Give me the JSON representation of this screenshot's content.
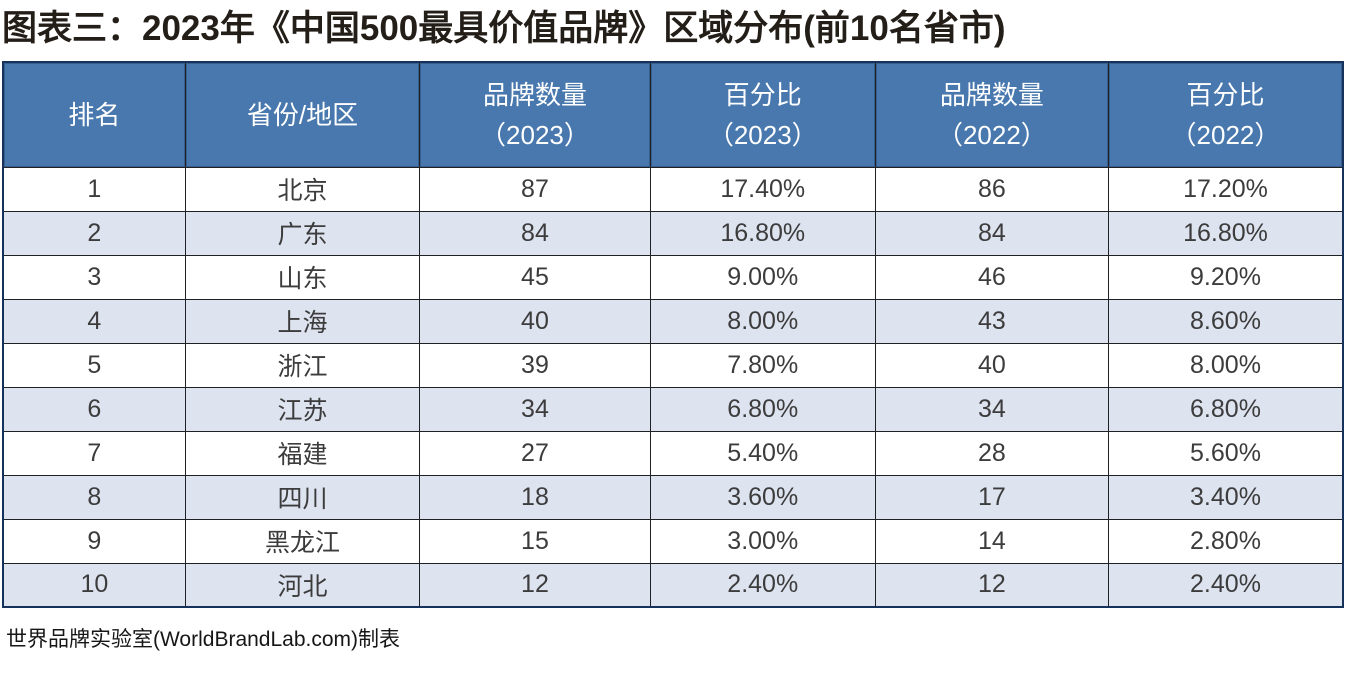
{
  "title": "图表三：2023年《中国500最具价值品牌》区域分布(前10名省市)",
  "footer": "世界品牌实验室(WorldBrandLab.com)制表",
  "colors": {
    "header_background": "#4878ad",
    "header_text": "#ffffff",
    "alt_row_background": "#dee3f0",
    "row_background": "#ffffff",
    "cell_border": "#1f2124",
    "outer_border": "#16315a",
    "body_text": "#3c3c3c",
    "title_text": "#241e19"
  },
  "table": {
    "headers": [
      {
        "line1": "排名",
        "line2": ""
      },
      {
        "line1": "省份/地区",
        "line2": ""
      },
      {
        "line1": "品牌数量",
        "line2": "（2023）"
      },
      {
        "line1": "百分比",
        "line2": "（2023）"
      },
      {
        "line1": "品牌数量",
        "line2": "（2022）"
      },
      {
        "line1": "百分比",
        "line2": "（2022）"
      }
    ],
    "rows": [
      [
        "1",
        "北京",
        "87",
        "17.40%",
        "86",
        "17.20%"
      ],
      [
        "2",
        "广东",
        "84",
        "16.80%",
        "84",
        "16.80%"
      ],
      [
        "3",
        "山东",
        "45",
        "9.00%",
        "46",
        "9.20%"
      ],
      [
        "4",
        "上海",
        "40",
        "8.00%",
        "43",
        "8.60%"
      ],
      [
        "5",
        "浙江",
        "39",
        "7.80%",
        "40",
        "8.00%"
      ],
      [
        "6",
        "江苏",
        "34",
        "6.80%",
        "34",
        "6.80%"
      ],
      [
        "7",
        "福建",
        "27",
        "5.40%",
        "28",
        "5.60%"
      ],
      [
        "8",
        "四川",
        "18",
        "3.60%",
        "17",
        "3.40%"
      ],
      [
        "9",
        "黑龙江",
        "15",
        "3.00%",
        "14",
        "2.80%"
      ],
      [
        "10",
        "河北",
        "12",
        "2.40%",
        "12",
        "2.40%"
      ]
    ]
  },
  "chart_data": {
    "type": "table",
    "title": "图表三：2023年《中国500最具价值品牌》区域分布(前10名省市)",
    "columns": [
      "排名",
      "省份/地区",
      "品牌数量（2023）",
      "百分比（2023）",
      "品牌数量（2022）",
      "百分比（2022）"
    ],
    "rows": [
      [
        1,
        "北京",
        87,
        "17.40%",
        86,
        "17.20%"
      ],
      [
        2,
        "广东",
        84,
        "16.80%",
        84,
        "16.80%"
      ],
      [
        3,
        "山东",
        45,
        "9.00%",
        46,
        "9.20%"
      ],
      [
        4,
        "上海",
        40,
        "8.00%",
        43,
        "8.60%"
      ],
      [
        5,
        "浙江",
        39,
        "7.80%",
        40,
        "8.00%"
      ],
      [
        6,
        "江苏",
        34,
        "6.80%",
        34,
        "6.80%"
      ],
      [
        7,
        "福建",
        27,
        "5.40%",
        28,
        "5.60%"
      ],
      [
        8,
        "四川",
        18,
        "3.60%",
        17,
        "3.40%"
      ],
      [
        9,
        "黑龙江",
        15,
        "3.00%",
        14,
        "2.80%"
      ],
      [
        10,
        "河北",
        12,
        "2.40%",
        12,
        "2.40%"
      ]
    ],
    "source_note": "世界品牌实验室(WorldBrandLab.com)制表"
  }
}
